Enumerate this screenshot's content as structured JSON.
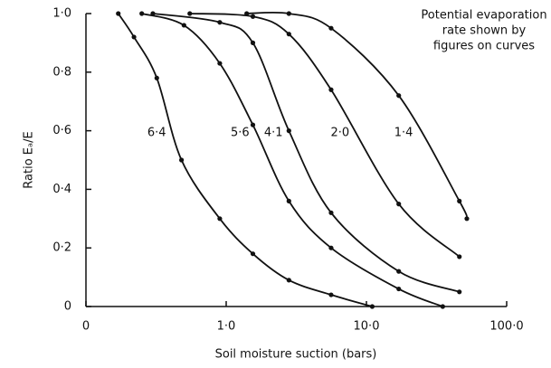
{
  "chart_data": {
    "type": "line",
    "xlabel": "Soil moisture suction (bars)",
    "ylabel": "Ratio Eₐ/E",
    "annotation": [
      "Potential evaporation",
      "rate shown by",
      "figures on curves"
    ],
    "xscale": "log",
    "xlim": [
      0.1,
      100
    ],
    "xticks": [
      {
        "value": 0.1,
        "label": "0"
      },
      {
        "value": 1,
        "label": "1·0"
      },
      {
        "value": 10,
        "label": "10·0"
      },
      {
        "value": 100,
        "label": "100·0"
      }
    ],
    "ylim": [
      0,
      1
    ],
    "yticks": [
      0,
      {
        "value": 0.2,
        "label": "0·2"
      },
      {
        "value": 0.4,
        "label": "0·4"
      },
      {
        "value": 0.6,
        "label": "0·6"
      },
      {
        "value": 0.8,
        "label": "0·8"
      },
      {
        "value": 1,
        "label": "1·0"
      }
    ],
    "color": "#111111",
    "series": [
      {
        "name": "6·4",
        "x": [
          0.17,
          0.22,
          0.32,
          0.48,
          0.9,
          1.55,
          2.8,
          5.6,
          11
        ],
        "values": [
          1,
          0.92,
          0.78,
          0.5,
          0.3,
          0.18,
          0.09,
          0.04,
          0
        ]
      },
      {
        "name": "5·6",
        "x": [
          0.25,
          0.5,
          0.9,
          1.55,
          2.8,
          5.6,
          17,
          35
        ],
        "values": [
          1,
          0.96,
          0.83,
          0.62,
          0.36,
          0.2,
          0.06,
          0
        ]
      },
      {
        "name": "4·1",
        "x": [
          0.3,
          0.9,
          1.55,
          2.8,
          5.6,
          17,
          46
        ],
        "values": [
          1,
          0.97,
          0.9,
          0.6,
          0.32,
          0.12,
          0.05
        ]
      },
      {
        "name": "2·0",
        "x": [
          0.55,
          1.55,
          2.8,
          5.6,
          17,
          46
        ],
        "values": [
          1,
          0.99,
          0.93,
          0.74,
          0.35,
          0.17
        ]
      },
      {
        "name": "1·4",
        "x": [
          1.4,
          2.8,
          5.6,
          17,
          46,
          52
        ],
        "values": [
          1,
          1,
          0.95,
          0.72,
          0.36,
          0.3
        ]
      }
    ]
  }
}
